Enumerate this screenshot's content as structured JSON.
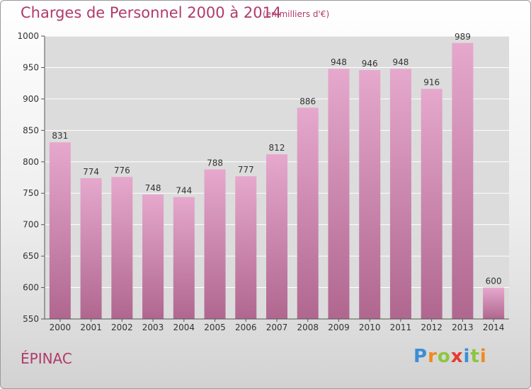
{
  "header": {
    "title": "Charges de Personnel 2000 à 2014",
    "subtitle": "(en milliers d'€)"
  },
  "footer": {
    "commune": "ÉPINAC",
    "logo_text": "Proxiti",
    "logo_letters": [
      {
        "char": "P",
        "color": "#3b8ed8"
      },
      {
        "char": "r",
        "color": "#f08a1e"
      },
      {
        "char": "o",
        "color": "#8cc63f"
      },
      {
        "char": "x",
        "color": "#e63a2e"
      },
      {
        "char": "i",
        "color": "#3b8ed8"
      },
      {
        "char": "t",
        "color": "#8cc63f"
      },
      {
        "char": "i",
        "color": "#f08a1e"
      }
    ]
  },
  "colors": {
    "bar_top": "#e6a8cd",
    "bar_bottom": "#b0678f",
    "plot_bg": "#dcdcdc",
    "grid": "#ffffff",
    "title": "#b03a6a"
  },
  "chart_data": {
    "type": "bar",
    "categories": [
      "2000",
      "2001",
      "2002",
      "2003",
      "2004",
      "2005",
      "2006",
      "2007",
      "2008",
      "2009",
      "2010",
      "2011",
      "2012",
      "2013",
      "2014"
    ],
    "values": [
      831,
      774,
      776,
      748,
      744,
      788,
      777,
      812,
      886,
      948,
      946,
      948,
      916,
      989,
      600
    ],
    "title": "Charges de Personnel 2000 à 2014",
    "ylim": [
      550,
      1000
    ],
    "yticks": [
      550,
      600,
      650,
      700,
      750,
      800,
      850,
      900,
      950,
      1000
    ],
    "grid": true,
    "data_labels": true
  }
}
